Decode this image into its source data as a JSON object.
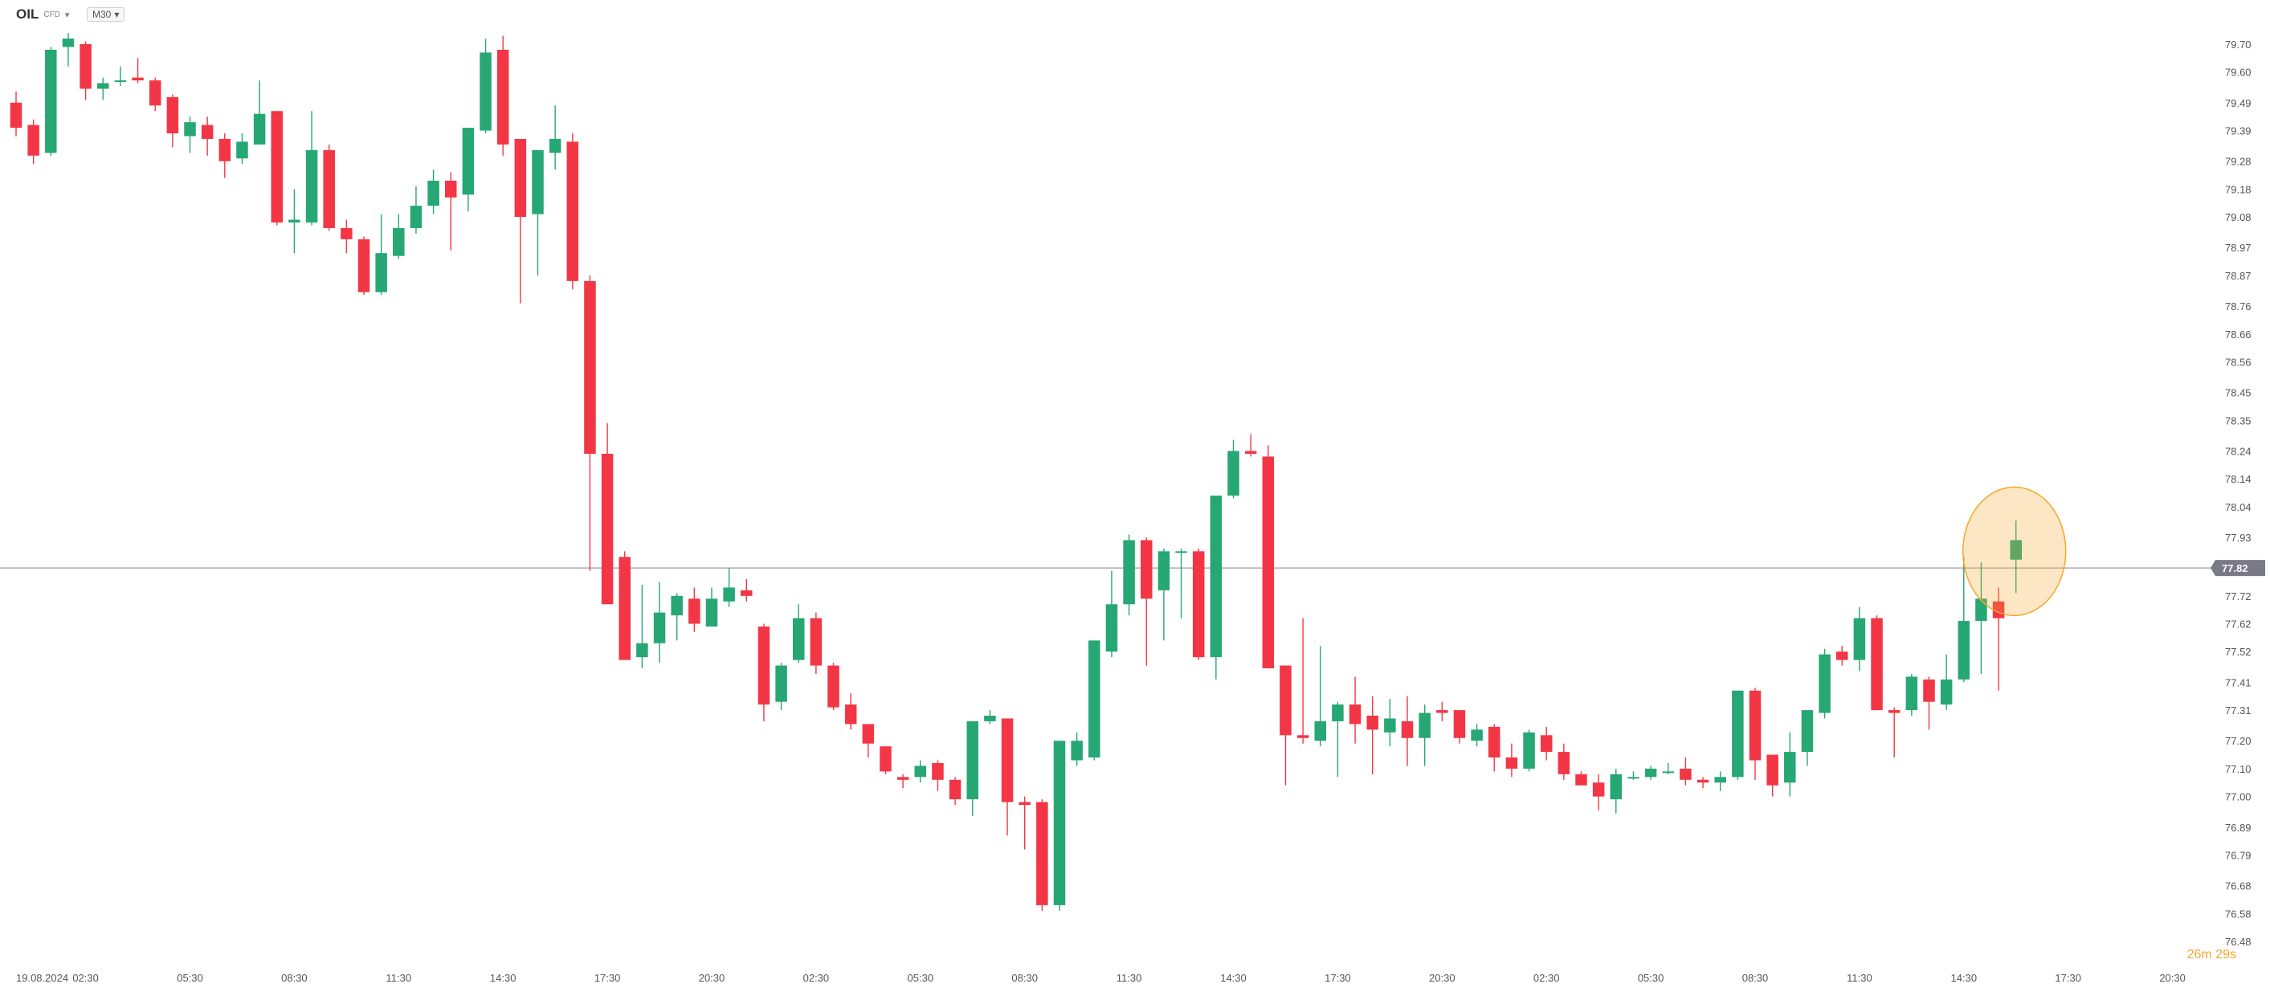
{
  "header": {
    "symbol": "OIL",
    "symbol_sub": "CFD",
    "timeframe": "M30",
    "countdown": "26m 29s"
  },
  "colors": {
    "up": "#26a774",
    "down": "#f23645",
    "price_line": "#9e9e9e",
    "price_badge": "#787b86",
    "highlight": "#f4a72c"
  },
  "chart_data": {
    "type": "candlestick",
    "timeframe": "M30",
    "current_price": 77.82,
    "current_price_label": "77.82",
    "ylim": [
      76.48,
      79.77
    ],
    "yticks": [
      "79.70",
      "79.60",
      "79.49",
      "79.39",
      "79.28",
      "79.18",
      "79.08",
      "78.97",
      "78.87",
      "78.76",
      "78.66",
      "78.56",
      "78.45",
      "78.35",
      "78.24",
      "78.14",
      "78.04",
      "77.93",
      "77.72",
      "77.62",
      "77.52",
      "77.41",
      "77.31",
      "77.20",
      "77.10",
      "77.00",
      "76.89",
      "76.79",
      "76.68",
      "76.58",
      "76.48"
    ],
    "xticks": [
      {
        "i": 0,
        "label": "19.08.2024"
      },
      {
        "i": 4,
        "label": "02:30"
      },
      {
        "i": 10,
        "label": "05:30"
      },
      {
        "i": 16,
        "label": "08:30"
      },
      {
        "i": 22,
        "label": "11:30"
      },
      {
        "i": 28,
        "label": "14:30"
      },
      {
        "i": 34,
        "label": "17:30"
      },
      {
        "i": 40,
        "label": "20:30"
      },
      {
        "i": 46,
        "label": "02:30"
      },
      {
        "i": 52,
        "label": "05:30"
      },
      {
        "i": 58,
        "label": "08:30"
      },
      {
        "i": 64,
        "label": "11:30"
      },
      {
        "i": 70,
        "label": "14:30"
      },
      {
        "i": 76,
        "label": "17:30"
      },
      {
        "i": 82,
        "label": "20:30"
      },
      {
        "i": 88,
        "label": "02:30"
      },
      {
        "i": 94,
        "label": "05:30"
      },
      {
        "i": 100,
        "label": "08:30"
      },
      {
        "i": 106,
        "label": "11:30"
      },
      {
        "i": 112,
        "label": "14:30"
      },
      {
        "i": 118,
        "label": "17:30"
      },
      {
        "i": 124,
        "label": "20:30"
      }
    ],
    "candles": [
      [
        79.49,
        79.53,
        79.37,
        79.4
      ],
      [
        79.41,
        79.43,
        79.27,
        79.3
      ],
      [
        79.31,
        79.69,
        79.3,
        79.68
      ],
      [
        79.69,
        79.74,
        79.62,
        79.72
      ],
      [
        79.7,
        79.71,
        79.5,
        79.54
      ],
      [
        79.54,
        79.58,
        79.5,
        79.56
      ],
      [
        79.57,
        79.62,
        79.55,
        79.57
      ],
      [
        79.58,
        79.65,
        79.56,
        79.57
      ],
      [
        79.57,
        79.58,
        79.46,
        79.48
      ],
      [
        79.51,
        79.52,
        79.33,
        79.38
      ],
      [
        79.37,
        79.44,
        79.31,
        79.42
      ],
      [
        79.41,
        79.44,
        79.3,
        79.36
      ],
      [
        79.36,
        79.38,
        79.22,
        79.28
      ],
      [
        79.29,
        79.38,
        79.27,
        79.35
      ],
      [
        79.34,
        79.57,
        79.34,
        79.45
      ],
      [
        79.46,
        79.46,
        79.05,
        79.06
      ],
      [
        79.06,
        79.18,
        78.95,
        79.07
      ],
      [
        79.06,
        79.46,
        79.05,
        79.32
      ],
      [
        79.32,
        79.34,
        79.03,
        79.04
      ],
      [
        79.04,
        79.07,
        78.95,
        79.0
      ],
      [
        79.0,
        79.01,
        78.8,
        78.81
      ],
      [
        78.81,
        79.09,
        78.8,
        78.95
      ],
      [
        78.94,
        79.09,
        78.93,
        79.04
      ],
      [
        79.04,
        79.19,
        79.02,
        79.12
      ],
      [
        79.12,
        79.25,
        79.09,
        79.21
      ],
      [
        79.21,
        79.24,
        78.96,
        79.15
      ],
      [
        79.16,
        79.39,
        79.1,
        79.4
      ],
      [
        79.39,
        79.72,
        79.38,
        79.67
      ],
      [
        79.68,
        79.73,
        79.3,
        79.34
      ],
      [
        79.36,
        79.36,
        78.77,
        79.08
      ],
      [
        79.09,
        79.31,
        78.87,
        79.32
      ],
      [
        79.31,
        79.48,
        79.25,
        79.36
      ],
      [
        79.35,
        79.38,
        78.82,
        78.85
      ],
      [
        78.85,
        78.87,
        77.81,
        78.23
      ],
      [
        78.23,
        78.34,
        77.72,
        77.69
      ],
      [
        77.86,
        77.88,
        77.5,
        77.49
      ],
      [
        77.5,
        77.76,
        77.46,
        77.55
      ],
      [
        77.55,
        77.77,
        77.48,
        77.66
      ],
      [
        77.65,
        77.73,
        77.56,
        77.72
      ],
      [
        77.71,
        77.75,
        77.59,
        77.62
      ],
      [
        77.61,
        77.75,
        77.61,
        77.71
      ],
      [
        77.7,
        77.82,
        77.68,
        77.75
      ],
      [
        77.74,
        77.78,
        77.7,
        77.72
      ],
      [
        77.61,
        77.62,
        77.27,
        77.33
      ],
      [
        77.34,
        77.48,
        77.31,
        77.47
      ],
      [
        77.49,
        77.69,
        77.48,
        77.64
      ],
      [
        77.64,
        77.66,
        77.44,
        77.47
      ],
      [
        77.47,
        77.48,
        77.31,
        77.32
      ],
      [
        77.33,
        77.37,
        77.24,
        77.26
      ],
      [
        77.26,
        77.26,
        77.14,
        77.19
      ],
      [
        77.18,
        77.18,
        77.08,
        77.09
      ],
      [
        77.07,
        77.08,
        77.03,
        77.06
      ],
      [
        77.07,
        77.13,
        77.05,
        77.11
      ],
      [
        77.12,
        77.13,
        77.02,
        77.06
      ],
      [
        77.06,
        77.07,
        76.97,
        76.99
      ],
      [
        76.99,
        77.25,
        76.93,
        77.27
      ],
      [
        77.27,
        77.31,
        77.26,
        77.29
      ],
      [
        77.28,
        77.28,
        76.86,
        76.98
      ],
      [
        76.98,
        77.0,
        76.81,
        76.97
      ],
      [
        76.98,
        76.99,
        76.59,
        76.61
      ],
      [
        76.61,
        77.2,
        76.59,
        77.2
      ],
      [
        77.13,
        77.23,
        77.11,
        77.2
      ],
      [
        77.14,
        77.53,
        77.13,
        77.56
      ],
      [
        77.52,
        77.81,
        77.5,
        77.69
      ],
      [
        77.69,
        77.94,
        77.65,
        77.92
      ],
      [
        77.92,
        77.93,
        77.47,
        77.71
      ],
      [
        77.74,
        77.89,
        77.56,
        77.88
      ],
      [
        77.88,
        77.89,
        77.64,
        77.88
      ],
      [
        77.88,
        77.89,
        77.49,
        77.5
      ],
      [
        77.5,
        78.08,
        77.42,
        78.08
      ],
      [
        78.08,
        78.28,
        78.07,
        78.24
      ],
      [
        78.24,
        78.3,
        78.22,
        78.23
      ],
      [
        78.22,
        78.26,
        77.47,
        77.46
      ],
      [
        77.47,
        77.47,
        77.04,
        77.22
      ],
      [
        77.22,
        77.64,
        77.19,
        77.21
      ],
      [
        77.2,
        77.54,
        77.18,
        77.27
      ],
      [
        77.27,
        77.34,
        77.07,
        77.33
      ],
      [
        77.33,
        77.43,
        77.19,
        77.26
      ],
      [
        77.29,
        77.36,
        77.08,
        77.24
      ],
      [
        77.23,
        77.35,
        77.18,
        77.28
      ],
      [
        77.27,
        77.36,
        77.11,
        77.21
      ],
      [
        77.21,
        77.33,
        77.11,
        77.3
      ],
      [
        77.31,
        77.34,
        77.27,
        77.3
      ],
      [
        77.31,
        77.31,
        77.19,
        77.21
      ],
      [
        77.2,
        77.26,
        77.18,
        77.24
      ],
      [
        77.25,
        77.26,
        77.09,
        77.14
      ],
      [
        77.14,
        77.19,
        77.07,
        77.1
      ],
      [
        77.1,
        77.24,
        77.09,
        77.23
      ],
      [
        77.22,
        77.25,
        77.13,
        77.16
      ],
      [
        77.16,
        77.19,
        77.06,
        77.08
      ],
      [
        77.08,
        77.09,
        77.04,
        77.04
      ],
      [
        77.05,
        77.08,
        76.95,
        77.0
      ],
      [
        76.99,
        77.1,
        76.94,
        77.08
      ],
      [
        77.07,
        77.09,
        77.06,
        77.07
      ],
      [
        77.07,
        77.11,
        77.06,
        77.1
      ],
      [
        77.09,
        77.12,
        77.08,
        77.09
      ],
      [
        77.1,
        77.14,
        77.04,
        77.06
      ],
      [
        77.06,
        77.07,
        77.03,
        77.05
      ],
      [
        77.05,
        77.09,
        77.02,
        77.07
      ],
      [
        77.07,
        77.38,
        77.06,
        77.38
      ],
      [
        77.38,
        77.39,
        77.06,
        77.13
      ],
      [
        77.15,
        77.15,
        77.0,
        77.04
      ],
      [
        77.05,
        77.23,
        77.0,
        77.16
      ],
      [
        77.16,
        77.3,
        77.11,
        77.31
      ],
      [
        77.3,
        77.53,
        77.28,
        77.51
      ],
      [
        77.52,
        77.54,
        77.47,
        77.49
      ],
      [
        77.49,
        77.68,
        77.45,
        77.64
      ],
      [
        77.64,
        77.65,
        77.31,
        77.31
      ],
      [
        77.31,
        77.32,
        77.14,
        77.3
      ],
      [
        77.31,
        77.44,
        77.29,
        77.43
      ],
      [
        77.42,
        77.43,
        77.24,
        77.34
      ],
      [
        77.33,
        77.51,
        77.31,
        77.42
      ],
      [
        77.42,
        77.86,
        77.41,
        77.63
      ],
      [
        77.63,
        77.84,
        77.44,
        77.71
      ],
      [
        77.7,
        77.75,
        77.38,
        77.64
      ],
      [
        77.85,
        77.99,
        77.73,
        77.92
      ]
    ]
  }
}
